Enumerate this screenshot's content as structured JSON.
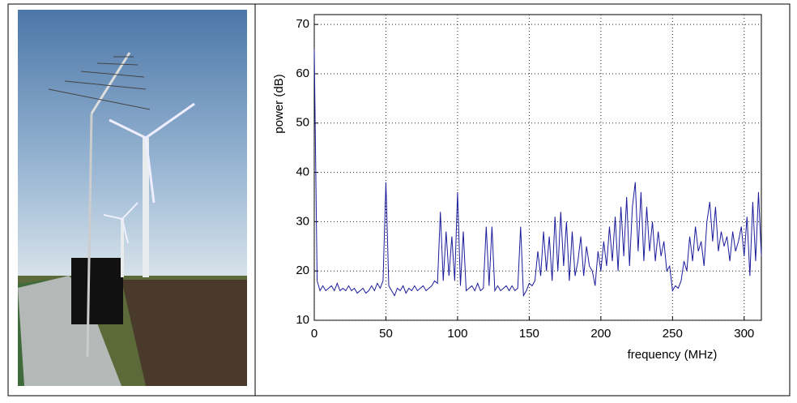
{
  "chart_data": {
    "type": "line",
    "xlabel": "frequency (MHz)",
    "ylabel": "power (dB)",
    "x": [
      0,
      2,
      4,
      6,
      8,
      10,
      12,
      14,
      16,
      18,
      20,
      22,
      24,
      26,
      28,
      30,
      32,
      34,
      36,
      38,
      40,
      42,
      44,
      46,
      48,
      50,
      52,
      54,
      56,
      58,
      60,
      62,
      64,
      66,
      68,
      70,
      72,
      74,
      76,
      78,
      80,
      82,
      84,
      86,
      88,
      90,
      92,
      94,
      96,
      98,
      100,
      102,
      104,
      106,
      108,
      110,
      112,
      114,
      116,
      118,
      120,
      122,
      124,
      126,
      128,
      130,
      132,
      134,
      136,
      138,
      140,
      142,
      144,
      146,
      148,
      150,
      152,
      154,
      156,
      158,
      160,
      162,
      164,
      166,
      168,
      170,
      172,
      174,
      176,
      178,
      180,
      182,
      184,
      186,
      188,
      190,
      192,
      194,
      196,
      198,
      200,
      202,
      204,
      206,
      208,
      210,
      212,
      214,
      216,
      218,
      220,
      222,
      224,
      226,
      228,
      230,
      232,
      234,
      236,
      238,
      240,
      242,
      244,
      246,
      248,
      250,
      252,
      254,
      256,
      258,
      260,
      262,
      264,
      266,
      268,
      270,
      272,
      274,
      276,
      278,
      280,
      282,
      284,
      286,
      288,
      290,
      292,
      294,
      296,
      298,
      300,
      302,
      304,
      306,
      308,
      310,
      312
    ],
    "series": [
      {
        "name": "power",
        "color": "#1c1c9c",
        "values": [
          65,
          18,
          16,
          17,
          16,
          16.5,
          17,
          16,
          17.5,
          16,
          16.5,
          16,
          17,
          16,
          16.5,
          15.5,
          16,
          16.5,
          15.5,
          16,
          17,
          16,
          17.5,
          16.5,
          18,
          38,
          17,
          16,
          15,
          16.5,
          16,
          17,
          15.5,
          16.5,
          16,
          17,
          16,
          16.5,
          17,
          16,
          16.5,
          17,
          18,
          17.5,
          32,
          18,
          28,
          19,
          27,
          18,
          36,
          17,
          28,
          16,
          16.5,
          17,
          16,
          17.5,
          16,
          16.5,
          29,
          17,
          29,
          16,
          17,
          16,
          16.5,
          17,
          16,
          17,
          16,
          16.5,
          29,
          15,
          16,
          17.5,
          17,
          18,
          24,
          19,
          28,
          20,
          27,
          18,
          31,
          20,
          32,
          21,
          30,
          18,
          28,
          19,
          22,
          27,
          19,
          25,
          21,
          20,
          17,
          24,
          20,
          26,
          21,
          29,
          22,
          31,
          20,
          33,
          23,
          35,
          21,
          33,
          38,
          24,
          36,
          22,
          33,
          24,
          30,
          22,
          28,
          23,
          26,
          20,
          21,
          16,
          17,
          16.5,
          18,
          22,
          20,
          27,
          22,
          29,
          24,
          26,
          21,
          30,
          34,
          26,
          33,
          24,
          28,
          25,
          27,
          22,
          28,
          24,
          26,
          29,
          23,
          31,
          19,
          34,
          22,
          36,
          23
        ]
      }
    ],
    "xlim": [
      0,
      312
    ],
    "xticks": [
      0,
      50,
      100,
      150,
      200,
      250,
      300
    ],
    "ylim": [
      10,
      72
    ],
    "yticks": [
      10,
      20,
      30,
      40,
      50,
      60,
      70
    ],
    "grid": true
  }
}
